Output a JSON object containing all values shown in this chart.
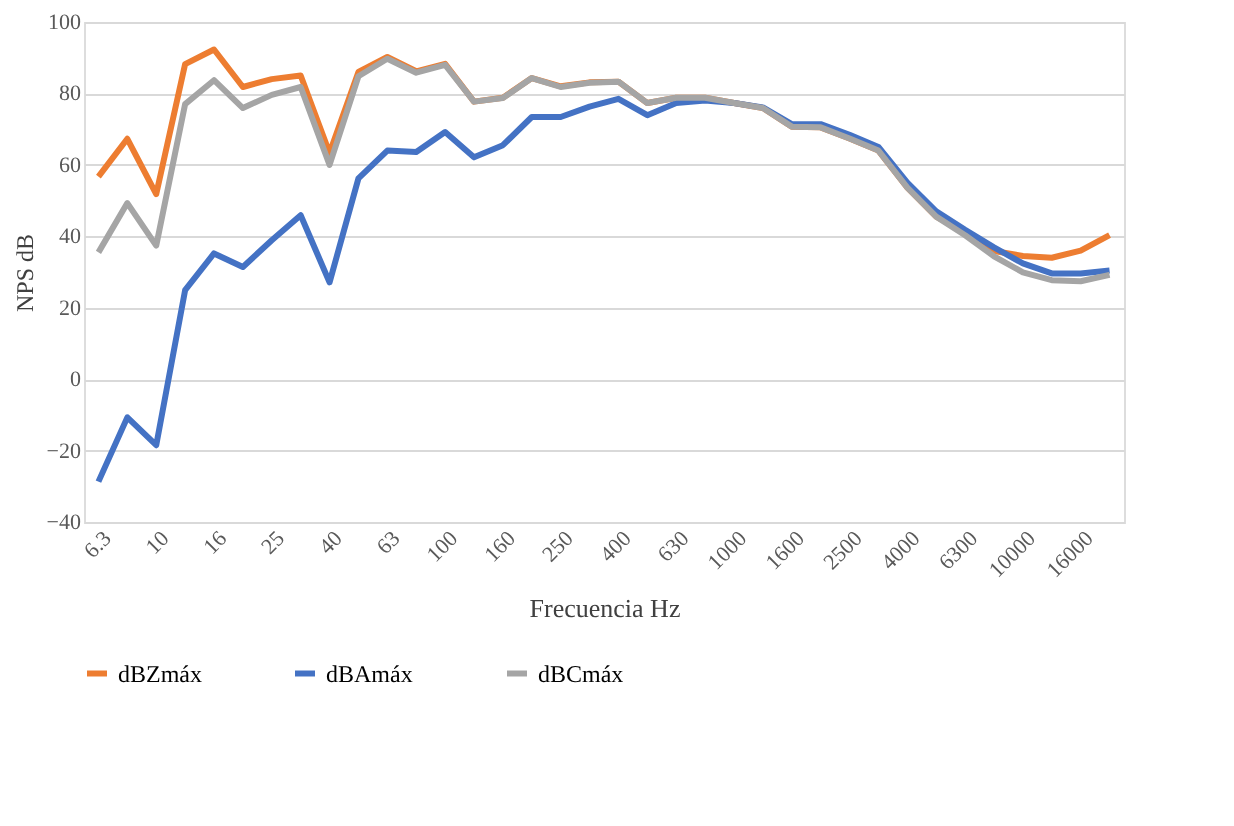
{
  "chart_data": {
    "type": "line",
    "xlabel": "Frecuencia Hz",
    "ylabel": "NPS dB",
    "categories": [
      "6.3",
      null,
      "10",
      null,
      "16",
      null,
      "25",
      null,
      "40",
      null,
      "63",
      null,
      "100",
      null,
      "160",
      null,
      "250",
      null,
      "400",
      null,
      "630",
      null,
      "1000",
      null,
      "1600",
      null,
      "2500",
      null,
      "4000",
      null,
      "6300",
      null,
      "10000",
      null,
      "16000",
      null
    ],
    "series": [
      {
        "name": "dBZmáx",
        "color": "#ed7d31",
        "values": [
          56.7,
          67.3,
          51.8,
          88.2,
          92.3,
          81.8,
          84,
          85,
          63.3,
          86,
          90.2,
          86.2,
          88.3,
          77.7,
          78.8,
          84.3,
          82,
          83.1,
          83.3,
          77.3,
          78.8,
          78.8,
          77.3,
          75.9,
          70.7,
          70.5,
          67.4,
          64,
          53.6,
          45.5,
          41,
          35.9,
          34.5,
          34,
          36,
          40.3
        ]
      },
      {
        "name": "dBAmáx",
        "color": "#4472c4",
        "values": [
          -28.7,
          -10.7,
          -18.5,
          24.9,
          35.2,
          31.4,
          38.9,
          45.9,
          27.1,
          56.2,
          64,
          63.6,
          69.2,
          62.1,
          65.5,
          73.4,
          73.4,
          76.3,
          78.5,
          73.9,
          77.3,
          78,
          77.3,
          76.1,
          71.4,
          71.4,
          68.4,
          65,
          55,
          47,
          41.8,
          36.9,
          32.4,
          29.6,
          29.6,
          30.4
        ]
      },
      {
        "name": "dBCmáx",
        "color": "#a5a5a5",
        "values": [
          35.5,
          49.3,
          37.4,
          77,
          83.7,
          75.9,
          79.6,
          81.8,
          60,
          84.8,
          89.7,
          85.8,
          88,
          77.7,
          78.7,
          84.3,
          81.8,
          83,
          83.3,
          77.3,
          78.8,
          78.8,
          77.3,
          75.9,
          70.7,
          70.5,
          67.4,
          64,
          53.6,
          45.5,
          40.3,
          34.4,
          29.9,
          27.7,
          27.4,
          29.2
        ]
      }
    ],
    "ylim": [
      -40,
      100
    ],
    "yticks": [
      -40,
      -20,
      0,
      20,
      40,
      60,
      80,
      100
    ],
    "grid": "y",
    "legend": "bottom",
    "line_style": "solid",
    "marker": "none"
  }
}
